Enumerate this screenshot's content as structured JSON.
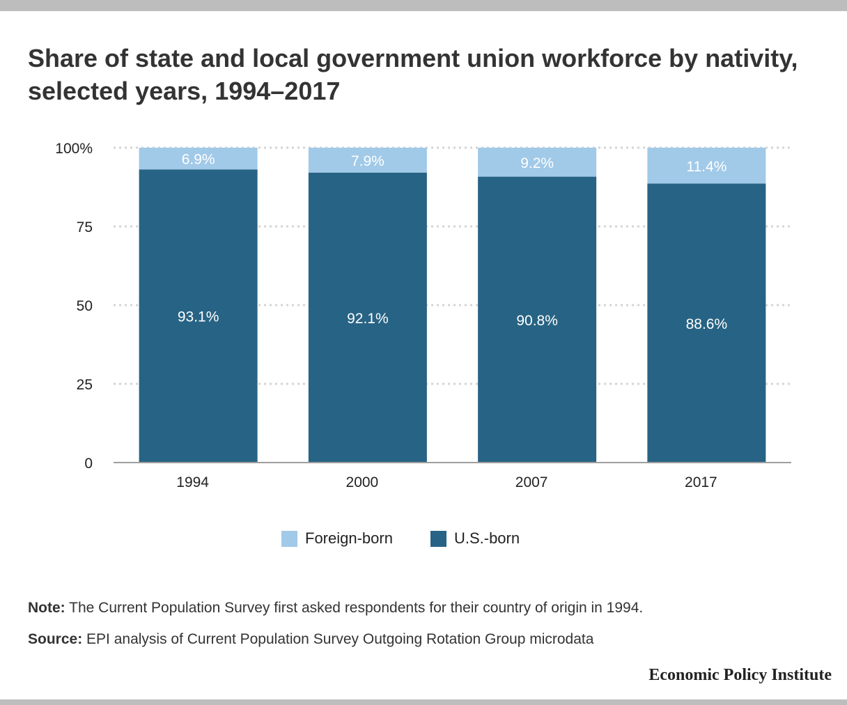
{
  "title": "Share of state and local government union workforce by nativity, selected years, 1994–2017",
  "chart_data": {
    "type": "bar",
    "stacked": true,
    "categories": [
      "1994",
      "2000",
      "2007",
      "2017"
    ],
    "series": [
      {
        "name": "U.S.-born",
        "values": [
          93.1,
          92.1,
          90.8,
          88.6
        ],
        "labels": [
          "93.1%",
          "92.1%",
          "90.8%",
          "88.6%"
        ],
        "color": "#276384"
      },
      {
        "name": "Foreign-born",
        "values": [
          6.9,
          7.9,
          9.2,
          11.4
        ],
        "labels": [
          "6.9%",
          "7.9%",
          "9.2%",
          "11.4%"
        ],
        "color": "#a1c9e8"
      }
    ],
    "ylim": [
      0,
      100
    ],
    "yticks": [
      0,
      25,
      50,
      75,
      100
    ],
    "ytick_labels": [
      "0",
      "25",
      "50",
      "75",
      "100%"
    ],
    "grid": true,
    "legend_placement": "bottom"
  },
  "legend": {
    "foreign_label": "Foreign-born",
    "us_label": "U.S.-born",
    "foreign_color": "#a1c9e8",
    "us_color": "#276384"
  },
  "note": {
    "label": "Note:",
    "text": " The Current Population Survey first asked respondents for their country of origin in 1994."
  },
  "source": {
    "label": "Source:",
    "text": " EPI analysis of Current Population Survey Outgoing Rotation Group microdata"
  },
  "org": "Economic Policy Institute"
}
